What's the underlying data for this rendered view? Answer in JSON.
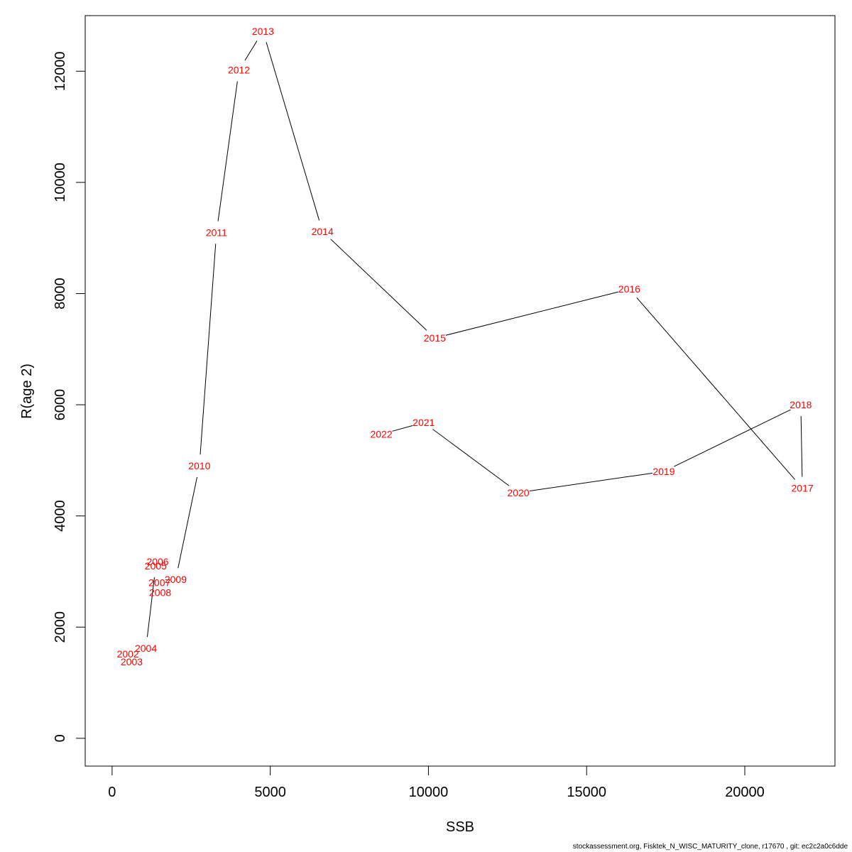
{
  "footer_text": "stockassessment.org, Fisktek_N_WISC_MATURITY_clone, r17670 , git: ec2c2a0c6dde",
  "chart_data": {
    "type": "line",
    "xlabel": "SSB",
    "ylabel": "R(age 2)",
    "xlim": [
      -850,
      22850
    ],
    "ylim": [
      -500,
      13000
    ],
    "x_ticks": [
      0,
      5000,
      10000,
      15000,
      20000
    ],
    "y_ticks": [
      0,
      2000,
      4000,
      6000,
      8000,
      10000,
      12000
    ],
    "grid": false,
    "line_color": "#000000",
    "label_color": "#ff0000",
    "points": [
      {
        "label": "2002",
        "x": 500,
        "y": 1520
      },
      {
        "label": "2003",
        "x": 620,
        "y": 1380
      },
      {
        "label": "2004",
        "x": 1070,
        "y": 1620
      },
      {
        "label": "2005",
        "x": 1380,
        "y": 3100
      },
      {
        "label": "2006",
        "x": 1440,
        "y": 3180
      },
      {
        "label": "2007",
        "x": 1500,
        "y": 2800
      },
      {
        "label": "2008",
        "x": 1520,
        "y": 2620
      },
      {
        "label": "2009",
        "x": 2010,
        "y": 2860
      },
      {
        "label": "2010",
        "x": 2760,
        "y": 4900
      },
      {
        "label": "2011",
        "x": 3300,
        "y": 9100
      },
      {
        "label": "2012",
        "x": 4010,
        "y": 12020
      },
      {
        "label": "2013",
        "x": 4770,
        "y": 12720
      },
      {
        "label": "2014",
        "x": 6650,
        "y": 9120
      },
      {
        "label": "2015",
        "x": 10200,
        "y": 7200
      },
      {
        "label": "2016",
        "x": 16350,
        "y": 8080
      },
      {
        "label": "2017",
        "x": 21820,
        "y": 4500
      },
      {
        "label": "2018",
        "x": 21770,
        "y": 6000
      },
      {
        "label": "2019",
        "x": 17440,
        "y": 4800
      },
      {
        "label": "2020",
        "x": 12840,
        "y": 4420
      },
      {
        "label": "2021",
        "x": 9850,
        "y": 5680
      },
      {
        "label": "2022",
        "x": 8510,
        "y": 5470
      }
    ]
  }
}
